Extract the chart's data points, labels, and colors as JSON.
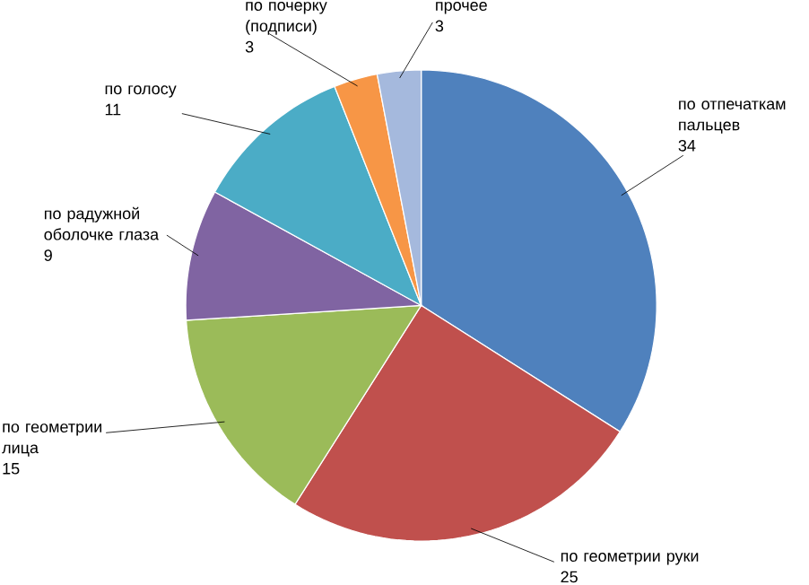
{
  "chart_data": {
    "type": "pie",
    "categories": [
      "по отпечаткам пальцев",
      "по геометрии руки",
      "по геометрии лица",
      "по радужной оболочке глаза",
      "по голосу",
      "по почерку (подписи)",
      "прочее"
    ],
    "values": [
      34,
      25,
      15,
      9,
      11,
      3,
      3
    ],
    "colors": [
      "#4f81bd",
      "#c0504d",
      "#9bbb59",
      "#8064a2",
      "#4bacc6",
      "#f79646",
      "#a5b9dd"
    ],
    "data_labels": true
  }
}
